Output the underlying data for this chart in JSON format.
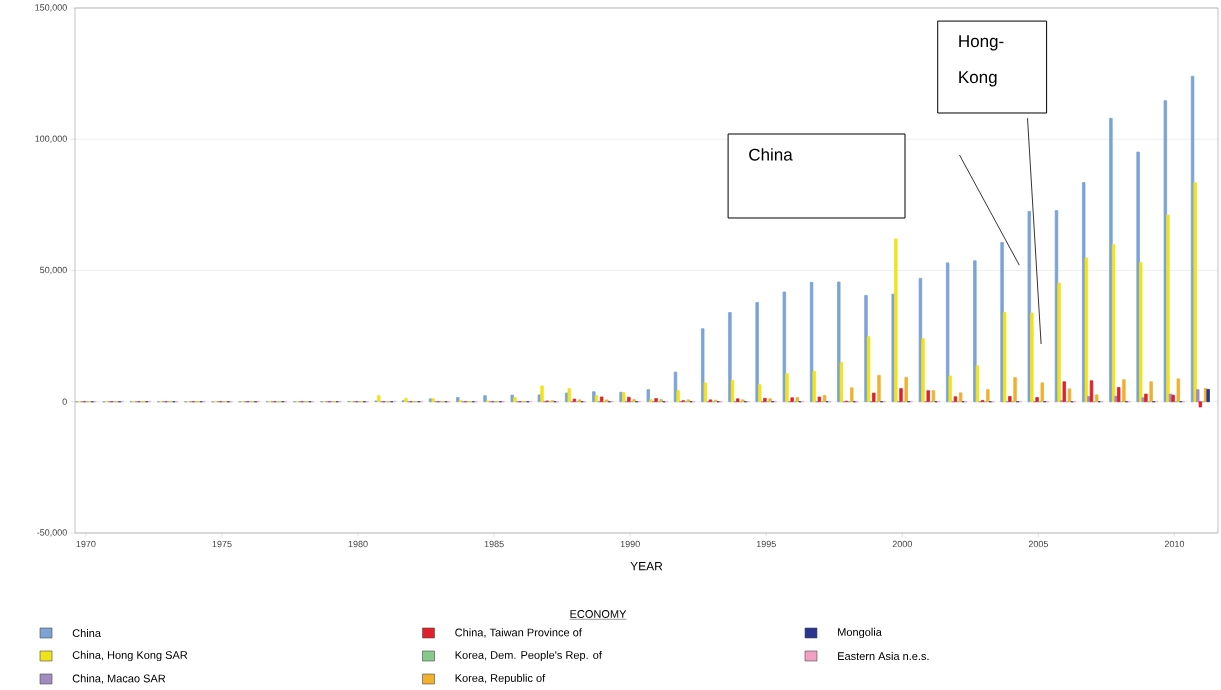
{
  "chart_data": {
    "type": "bar",
    "xlabel": "YEAR",
    "legend_title": "ECONOMY",
    "legend": "bottom",
    "grid": "y",
    "x": [
      1970,
      1971,
      1972,
      1973,
      1974,
      1975,
      1976,
      1977,
      1978,
      1979,
      1980,
      1981,
      1982,
      1983,
      1984,
      1985,
      1986,
      1987,
      1988,
      1989,
      1990,
      1991,
      1992,
      1993,
      1994,
      1995,
      1996,
      1997,
      1998,
      1999,
      2000,
      2001,
      2002,
      2003,
      2004,
      2005,
      2006,
      2007,
      2008,
      2009,
      2010,
      2011
    ],
    "xlim": [
      1969.6,
      2011.6
    ],
    "xticks": [
      1970,
      1975,
      1980,
      1985,
      1990,
      1995,
      2000,
      2005,
      2010
    ],
    "ylim": [
      -50000,
      150000
    ],
    "yticks": [
      {
        "value": -50000,
        "label": "-50,000"
      },
      0,
      {
        "value": 50000,
        "label": "50,000"
      },
      {
        "value": 100000,
        "label": "100,000"
      },
      {
        "value": 150000,
        "label": "150,000"
      }
    ],
    "series": [
      {
        "name": "China",
        "color": "#7ba3d4",
        "values": [
          0,
          0,
          0,
          0,
          0,
          0,
          0,
          0,
          0,
          0,
          100,
          300,
          400,
          1100,
          1600,
          2300,
          2500,
          2600,
          3300,
          3800,
          3600,
          4600,
          11300,
          27800,
          34000,
          37800,
          41800,
          45500,
          45600,
          40500,
          41000,
          47000,
          52900,
          53700,
          60700,
          72500,
          72800,
          83500,
          108000,
          95100,
          114700,
          124000
        ]
      },
      {
        "name": "China, Hong Kong SAR",
        "color": "#f2e21c",
        "values": [
          0,
          0,
          0,
          0,
          0,
          0,
          0,
          0,
          0,
          0,
          0,
          2300,
          1300,
          1100,
          500,
          300,
          1600,
          6000,
          5000,
          2300,
          3500,
          800,
          4200,
          7200,
          8100,
          6500,
          10700,
          11600,
          15000,
          24800,
          62000,
          24000,
          9800,
          13700,
          34000,
          33800,
          45200,
          54800,
          59800,
          53000,
          71100,
          83400
        ]
      },
      {
        "name": "China, Macao SAR",
        "color": "#a08cc0",
        "values": [
          0,
          0,
          0,
          0,
          0,
          0,
          0,
          0,
          0,
          0,
          0,
          0,
          0,
          0,
          0,
          0,
          0,
          0,
          0,
          0,
          0,
          0,
          0,
          0,
          0,
          0,
          0,
          0,
          0,
          0,
          0,
          0,
          0,
          0,
          0,
          0,
          400,
          2000,
          2100,
          1500,
          2900,
          4600
        ]
      },
      {
        "name": "China, Taiwan Province of",
        "color": "#e0202a",
        "values": [
          0,
          0,
          0,
          0,
          0,
          0,
          0,
          0,
          0,
          0,
          0,
          0,
          0,
          0,
          0,
          0,
          0,
          300,
          1000,
          1800,
          1700,
          1200,
          400,
          700,
          1100,
          1300,
          1500,
          1800,
          200,
          3300,
          5000,
          4200,
          1900,
          500,
          2000,
          1600,
          7600,
          8000,
          5400,
          2900,
          2500,
          -2000
        ]
      },
      {
        "name": "Korea, Dem. People's Rep. of",
        "color": "#88c888",
        "values": [
          0,
          0,
          0,
          0,
          0,
          0,
          0,
          0,
          0,
          0,
          0,
          0,
          0,
          0,
          0,
          0,
          0,
          0,
          0,
          0,
          0,
          0,
          0,
          0,
          0,
          0,
          0,
          0,
          0,
          0,
          0,
          0,
          0,
          0,
          0,
          0,
          0,
          0,
          0,
          0,
          0,
          0
        ]
      },
      {
        "name": "Korea, Republic of",
        "color": "#f0b030",
        "values": [
          0,
          0,
          0,
          0,
          0,
          0,
          0,
          0,
          0,
          0,
          0,
          0,
          0,
          0,
          0,
          0,
          0,
          400,
          700,
          700,
          800,
          800,
          700,
          600,
          700,
          1100,
          1600,
          2400,
          5300,
          10000,
          9300,
          4200,
          3400,
          4600,
          9200,
          7200,
          4900,
          2600,
          8400,
          7600,
          8700,
          5000
        ]
      },
      {
        "name": "Mongolia",
        "color": "#2a3590",
        "values": [
          0,
          0,
          0,
          0,
          0,
          0,
          0,
          0,
          0,
          0,
          0,
          0,
          0,
          0,
          0,
          0,
          0,
          0,
          0,
          0,
          0,
          0,
          0,
          0,
          0,
          0,
          0,
          0,
          0,
          0,
          0,
          0,
          0,
          0,
          0,
          0,
          0,
          0,
          0,
          0,
          0,
          4700
        ]
      },
      {
        "name": "Eastern Asia n.e.s.",
        "color": "#f0a0c0",
        "values": [
          0,
          0,
          0,
          0,
          0,
          0,
          0,
          0,
          0,
          0,
          0,
          0,
          0,
          0,
          0,
          0,
          0,
          0,
          0,
          0,
          0,
          0,
          0,
          0,
          0,
          0,
          0,
          0,
          0,
          0,
          0,
          0,
          0,
          0,
          0,
          0,
          0,
          0,
          0,
          0,
          0,
          null
        ]
      }
    ],
    "annotations": [
      "China",
      "Hong-Kong"
    ]
  }
}
